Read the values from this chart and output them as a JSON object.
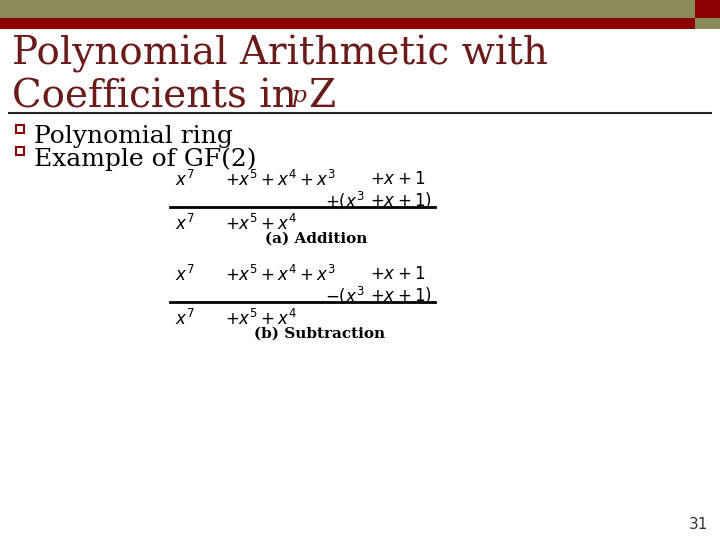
{
  "bg_color": "#ffffff",
  "header_bar_color": "#8b8b5a",
  "header_accent_color": "#8b0000",
  "title_color": "#6b1a1a",
  "title_line1": "Polynomial Arithmetic with",
  "title_line2": "Coefficients in Z",
  "title_subscript": "p",
  "title_fontsize": 28,
  "bullet_color": "#000000",
  "bullet_square_color": "#8b0000",
  "bullet1": "Polynomial ring",
  "bullet2": "Example of GF(2)",
  "bullet_fontsize": 18,
  "page_number": "31",
  "addition_label": "(a) Addition",
  "subtraction_label": "(b) Subtraction"
}
